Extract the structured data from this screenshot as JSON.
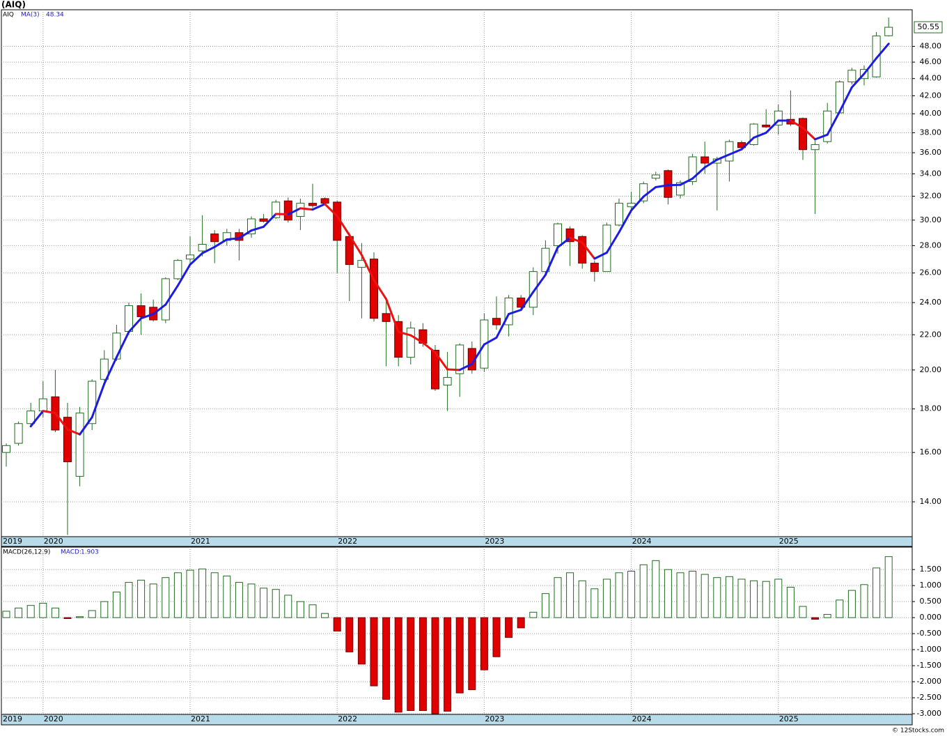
{
  "chart_data": [
    {
      "type": "candlestick",
      "title": "(AIQ)",
      "symbol": "AIQ",
      "categories": [
        "2019",
        null,
        null,
        "2020",
        null,
        null,
        null,
        null,
        null,
        null,
        null,
        null,
        null,
        null,
        null,
        "2021",
        null,
        null,
        null,
        null,
        null,
        null,
        null,
        null,
        null,
        null,
        null,
        "2022",
        null,
        null,
        null,
        null,
        null,
        null,
        null,
        null,
        null,
        null,
        null,
        "2023",
        null,
        null,
        null,
        null,
        null,
        null,
        null,
        null,
        null,
        null,
        null,
        "2024",
        null,
        null,
        null,
        null,
        null,
        null,
        null,
        null,
        null,
        null,
        null,
        "2025",
        null,
        null,
        null,
        null,
        null,
        null,
        null,
        null,
        null
      ],
      "open": [
        16.0,
        16.4,
        17.3,
        17.9,
        18.6,
        17.6,
        15.0,
        17.3,
        19.5,
        20.6,
        22.2,
        23.8,
        23.7,
        22.9,
        25.6,
        27.0,
        27.6,
        28.9,
        28.4,
        29.0,
        28.9,
        30.1,
        30.2,
        31.6,
        30.3,
        31.4,
        31.8,
        31.5,
        28.7,
        26.4,
        27.0,
        23.3,
        22.8,
        20.7,
        22.3,
        21.1,
        19.2,
        19.8,
        21.2,
        20.1,
        23.0,
        22.6,
        24.3,
        23.7,
        26.1,
        28.0,
        29.3,
        28.7,
        26.7,
        26.1,
        29.6,
        31.1,
        31.6,
        33.6,
        34.3,
        32.1,
        33.3,
        35.6,
        35.0,
        35.2,
        37.0,
        36.8,
        38.8,
        38.8,
        39.4,
        39.5,
        36.3,
        37.1,
        40.1,
        43.6,
        44.0,
        44.2,
        49.4
      ],
      "high": [
        16.4,
        17.4,
        18.3,
        19.4,
        20.0,
        18.3,
        18.1,
        19.5,
        21.1,
        22.6,
        24.0,
        24.6,
        24.2,
        25.7,
        27.0,
        28.7,
        30.4,
        29.2,
        29.3,
        29.3,
        30.3,
        30.5,
        31.7,
        31.9,
        31.8,
        33.1,
        31.9,
        31.6,
        29.0,
        28.2,
        27.5,
        24.2,
        23.2,
        22.8,
        22.7,
        21.4,
        21.0,
        21.5,
        21.6,
        23.3,
        24.4,
        24.5,
        24.5,
        26.4,
        28.4,
        29.8,
        29.5,
        28.8,
        26.9,
        29.8,
        31.8,
        32.4,
        33.3,
        34.2,
        34.4,
        33.4,
        35.9,
        37.1,
        35.6,
        37.3,
        37.2,
        39.0,
        40.5,
        41.0,
        42.6,
        39.6,
        37.2,
        41.2,
        43.8,
        45.3,
        45.6,
        49.9,
        51.9
      ],
      "low": [
        15.4,
        16.3,
        17.2,
        17.6,
        16.9,
        12.8,
        14.6,
        17.0,
        19.4,
        20.5,
        22.0,
        22.0,
        22.8,
        22.7,
        25.5,
        26.5,
        27.2,
        26.7,
        28.0,
        26.9,
        28.6,
        29.8,
        30.1,
        29.8,
        29.2,
        31.0,
        31.3,
        26.0,
        24.1,
        23.0,
        22.8,
        20.2,
        20.2,
        20.3,
        21.3,
        18.9,
        17.9,
        18.6,
        19.8,
        19.9,
        22.3,
        21.9,
        23.6,
        23.2,
        25.9,
        27.4,
        26.5,
        26.3,
        25.4,
        26.1,
        29.5,
        30.9,
        31.4,
        33.4,
        31.3,
        31.8,
        33.0,
        34.0,
        30.8,
        33.3,
        36.3,
        36.7,
        38.5,
        37.8,
        38.7,
        35.3,
        30.5,
        36.9,
        40.0,
        43.3,
        43.2,
        44.1,
        49.3
      ],
      "close": [
        16.3,
        17.3,
        17.9,
        18.5,
        17.0,
        15.6,
        17.8,
        19.4,
        20.6,
        22.1,
        23.8,
        23.1,
        22.9,
        25.6,
        26.9,
        27.3,
        28.1,
        28.3,
        29.0,
        28.4,
        30.1,
        29.9,
        31.5,
        30.0,
        31.4,
        31.2,
        31.4,
        28.4,
        26.6,
        26.9,
        23.0,
        22.8,
        20.7,
        22.4,
        21.5,
        19.0,
        19.6,
        21.4,
        20.0,
        22.9,
        22.6,
        24.3,
        23.7,
        26.1,
        27.8,
        29.7,
        28.3,
        26.7,
        26.1,
        29.6,
        31.4,
        31.4,
        33.1,
        33.9,
        31.9,
        33.2,
        35.6,
        35.0,
        35.4,
        37.1,
        36.5,
        38.9,
        38.6,
        40.3,
        38.9,
        36.3,
        36.8,
        40.3,
        43.6,
        45.0,
        45.1,
        49.37,
        50.55
      ],
      "up_color": "#1e6b1e",
      "down_color": "#e00000",
      "ma": {
        "name": "MA(3)",
        "up_color": "#1c1ce0",
        "down_color": "#ee1111",
        "values": [
          null,
          null,
          17.17,
          17.9,
          17.8,
          17.03,
          16.8,
          17.6,
          19.27,
          20.7,
          22.17,
          23.0,
          23.27,
          23.87,
          25.13,
          26.6,
          27.43,
          27.9,
          28.47,
          28.57,
          29.17,
          29.47,
          30.5,
          30.47,
          30.97,
          30.87,
          31.33,
          30.33,
          28.8,
          27.3,
          25.5,
          24.23,
          22.17,
          21.97,
          21.53,
          20.97,
          20.03,
          20.0,
          20.33,
          21.43,
          21.83,
          23.27,
          23.53,
          24.7,
          25.87,
          27.87,
          28.6,
          28.23,
          27.03,
          27.47,
          29.03,
          30.8,
          31.97,
          32.8,
          32.97,
          33.0,
          33.57,
          34.6,
          35.33,
          35.83,
          36.33,
          37.5,
          38.0,
          39.27,
          39.27,
          38.5,
          37.33,
          37.8,
          40.23,
          42.97,
          44.57,
          46.49,
          48.34
        ]
      },
      "ylim": [
        12.74,
        53.0
      ],
      "log_scale": true,
      "grid": true,
      "yticks": [
        {
          "value": 14,
          "label": "14.00"
        },
        {
          "value": 16,
          "label": "16.00"
        },
        {
          "value": 18,
          "label": "18.00"
        },
        {
          "value": 20,
          "label": "20.00"
        },
        {
          "value": 22,
          "label": "22.00"
        },
        {
          "value": 24,
          "label": "24.00"
        },
        {
          "value": 26,
          "label": "26.00"
        },
        {
          "value": 28,
          "label": "28.00"
        },
        {
          "value": 30,
          "label": "30.00"
        },
        {
          "value": 32,
          "label": "32.00"
        },
        {
          "value": 34,
          "label": "34.00"
        },
        {
          "value": 36,
          "label": "36.00"
        },
        {
          "value": 38,
          "label": "38.00"
        },
        {
          "value": 40,
          "label": "40.00"
        },
        {
          "value": 42,
          "label": "42.00"
        },
        {
          "value": 44,
          "label": "44.00"
        },
        {
          "value": 46,
          "label": "46.00"
        },
        {
          "value": 48,
          "label": "48.00"
        }
      ]
    },
    {
      "type": "bar",
      "name": "MACD(26,12,9)",
      "value_prefix": "MACD:",
      "categories": [
        "2019",
        null,
        null,
        "2020",
        null,
        null,
        null,
        null,
        null,
        null,
        null,
        null,
        null,
        null,
        null,
        "2021",
        null,
        null,
        null,
        null,
        null,
        null,
        null,
        null,
        null,
        null,
        null,
        "2022",
        null,
        null,
        null,
        null,
        null,
        null,
        null,
        null,
        null,
        null,
        null,
        "2023",
        null,
        null,
        null,
        null,
        null,
        null,
        null,
        null,
        null,
        null,
        null,
        "2024",
        null,
        null,
        null,
        null,
        null,
        null,
        null,
        null,
        null,
        null,
        null,
        "2025",
        null,
        null,
        null,
        null,
        null,
        null,
        null,
        null,
        null
      ],
      "values": [
        0.2,
        0.3,
        0.38,
        0.45,
        0.3,
        -0.03,
        0.03,
        0.22,
        0.5,
        0.8,
        1.1,
        1.17,
        1.05,
        1.25,
        1.4,
        1.48,
        1.52,
        1.4,
        1.3,
        1.1,
        1.05,
        0.92,
        0.88,
        0.7,
        0.5,
        0.4,
        0.13,
        -0.42,
        -1.07,
        -1.45,
        -2.13,
        -2.55,
        -2.95,
        -2.9,
        -2.9,
        -3.0,
        -2.92,
        -2.35,
        -2.25,
        -1.63,
        -1.22,
        -0.62,
        -0.32,
        0.17,
        0.75,
        1.25,
        1.4,
        1.15,
        0.9,
        1.2,
        1.4,
        1.45,
        1.65,
        1.78,
        1.5,
        1.4,
        1.45,
        1.35,
        1.25,
        1.28,
        1.2,
        1.15,
        1.13,
        1.2,
        0.95,
        0.35,
        -0.05,
        0.1,
        0.55,
        0.85,
        1.03,
        1.55,
        1.903
      ],
      "pos_color": "#1e6b1e",
      "neg_color": "#e00000",
      "grid": true,
      "ylim": [
        -3.02,
        2.2
      ],
      "yticks": [
        {
          "value": 1.5,
          "label": "1.500"
        },
        {
          "value": 1,
          "label": "1.000"
        },
        {
          "value": 0.5,
          "label": "0.500"
        },
        {
          "value": 0,
          "label": "0.000"
        },
        {
          "value": -0.5,
          "label": "-0.500"
        },
        {
          "value": -1,
          "label": "-1.000"
        },
        {
          "value": -1.5,
          "label": "-1.500"
        },
        {
          "value": -2,
          "label": "-2.000"
        },
        {
          "value": -2.5,
          "label": "-2.500"
        },
        {
          "value": -3,
          "label": "-3.000"
        }
      ]
    }
  ],
  "footer": "© 12Stocks.com"
}
